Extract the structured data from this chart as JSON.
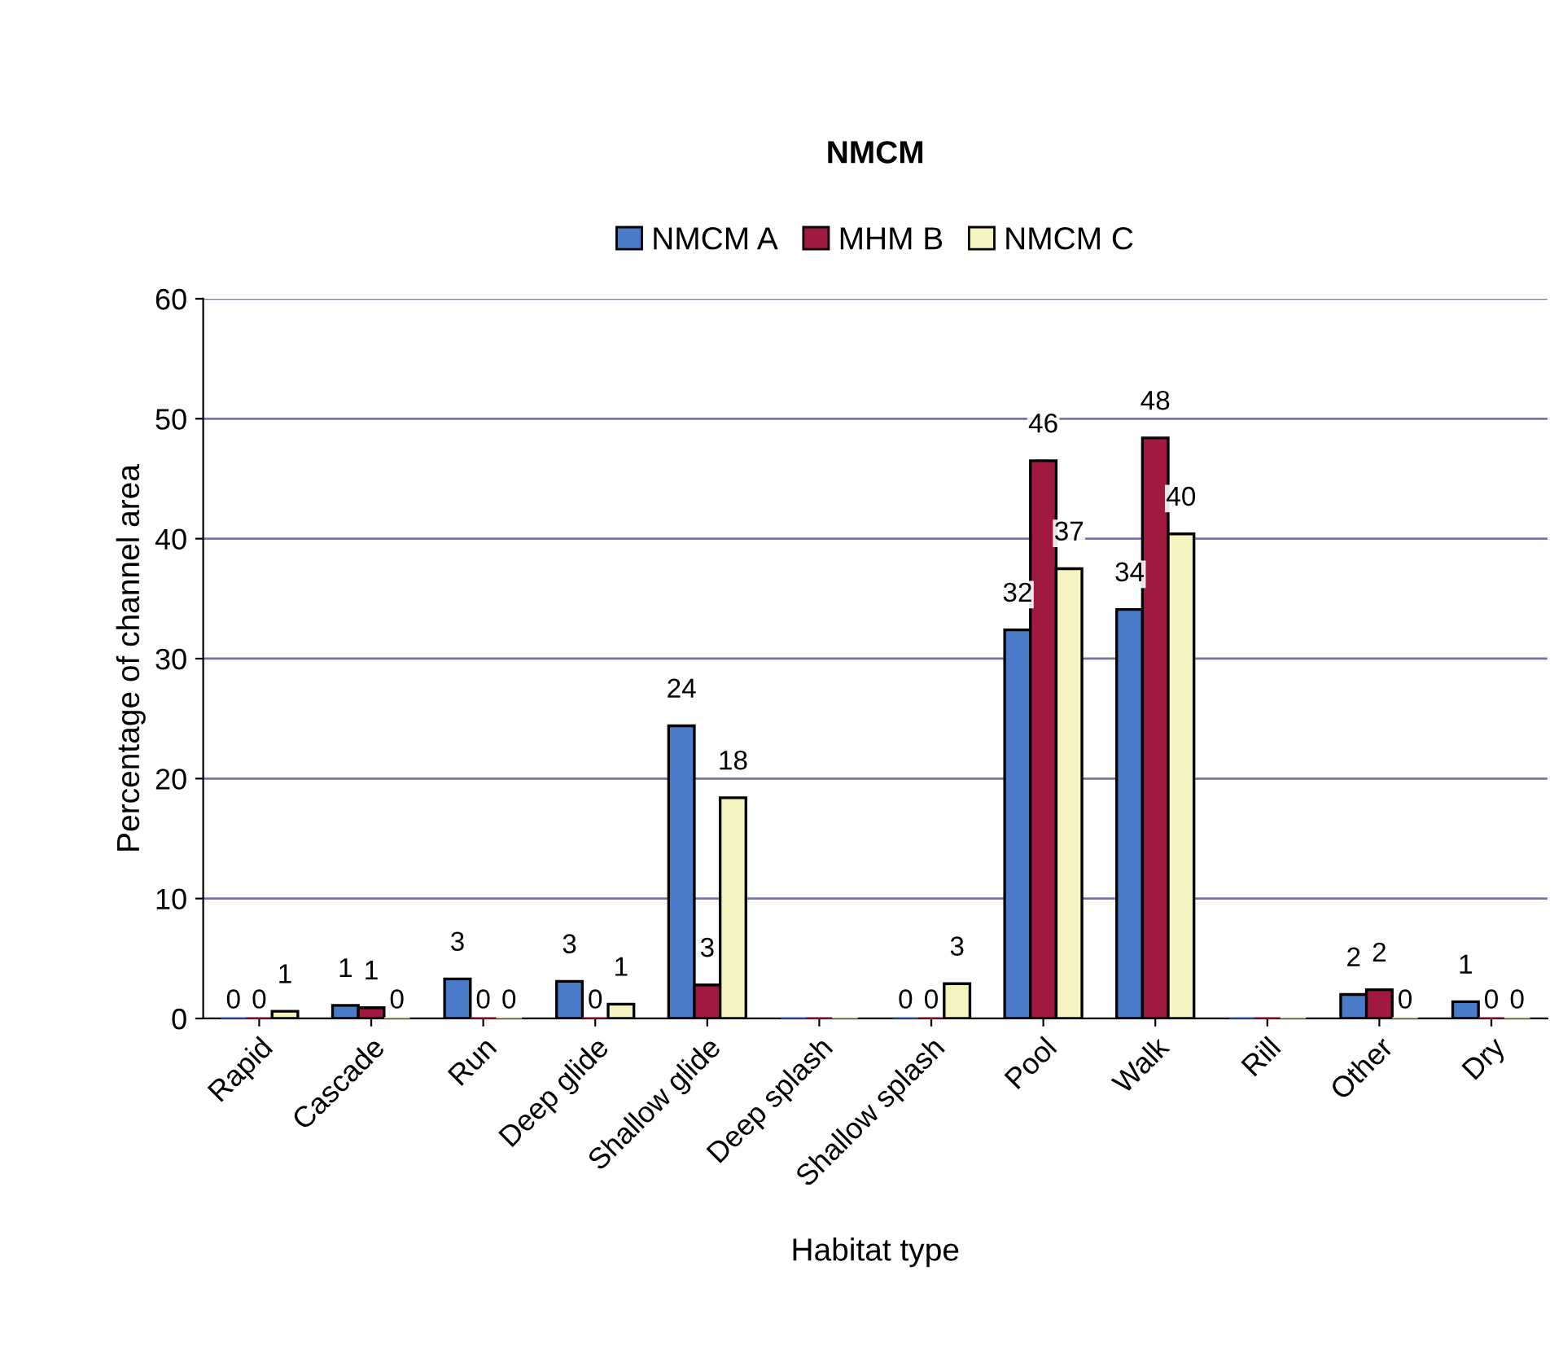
{
  "chart_data": {
    "type": "bar",
    "title": "NMCM",
    "xlabel": "Habitat type",
    "ylabel": "Percentage of channel area",
    "categories": [
      "Rapid",
      "Cascade",
      "Run",
      "Deep glide",
      "Shallow glide",
      "Deep splash",
      "Shallow splash",
      "Pool",
      "Walk",
      "Rill",
      "Other",
      "Dry"
    ],
    "series": [
      {
        "name": "NMCM A",
        "color": "#4a7bc8",
        "values": [
          0,
          1.1,
          3.3,
          3.1,
          24.4,
          0,
          0,
          32.4,
          34.1,
          0,
          2.0,
          1.4
        ],
        "value_labels": [
          "0",
          "1",
          "3",
          "3",
          "24",
          null,
          "0",
          "32",
          "34",
          null,
          "2",
          "1"
        ]
      },
      {
        "name": "MHM B",
        "color": "#a0193f",
        "values": [
          0,
          0.9,
          0,
          0,
          2.8,
          0,
          0,
          46.5,
          48.4,
          0,
          2.4,
          0
        ],
        "value_labels": [
          "0",
          "1",
          "0",
          "0",
          "3",
          null,
          "0",
          "46",
          "48",
          null,
          "2",
          "0"
        ]
      },
      {
        "name": "NMCM C",
        "color": "#f5f3c0",
        "values": [
          0.6,
          0,
          0,
          1.2,
          18.4,
          0,
          2.9,
          37.5,
          40.4,
          0,
          0,
          0
        ],
        "value_labels": [
          "1",
          "0",
          "0",
          "1",
          "18",
          null,
          "3",
          "37",
          "40",
          null,
          "0",
          "0"
        ]
      }
    ],
    "ylim": [
      0,
      60
    ],
    "yticks": [
      0,
      10,
      20,
      30,
      40,
      50,
      60
    ],
    "grid": "y",
    "legend": "top"
  }
}
